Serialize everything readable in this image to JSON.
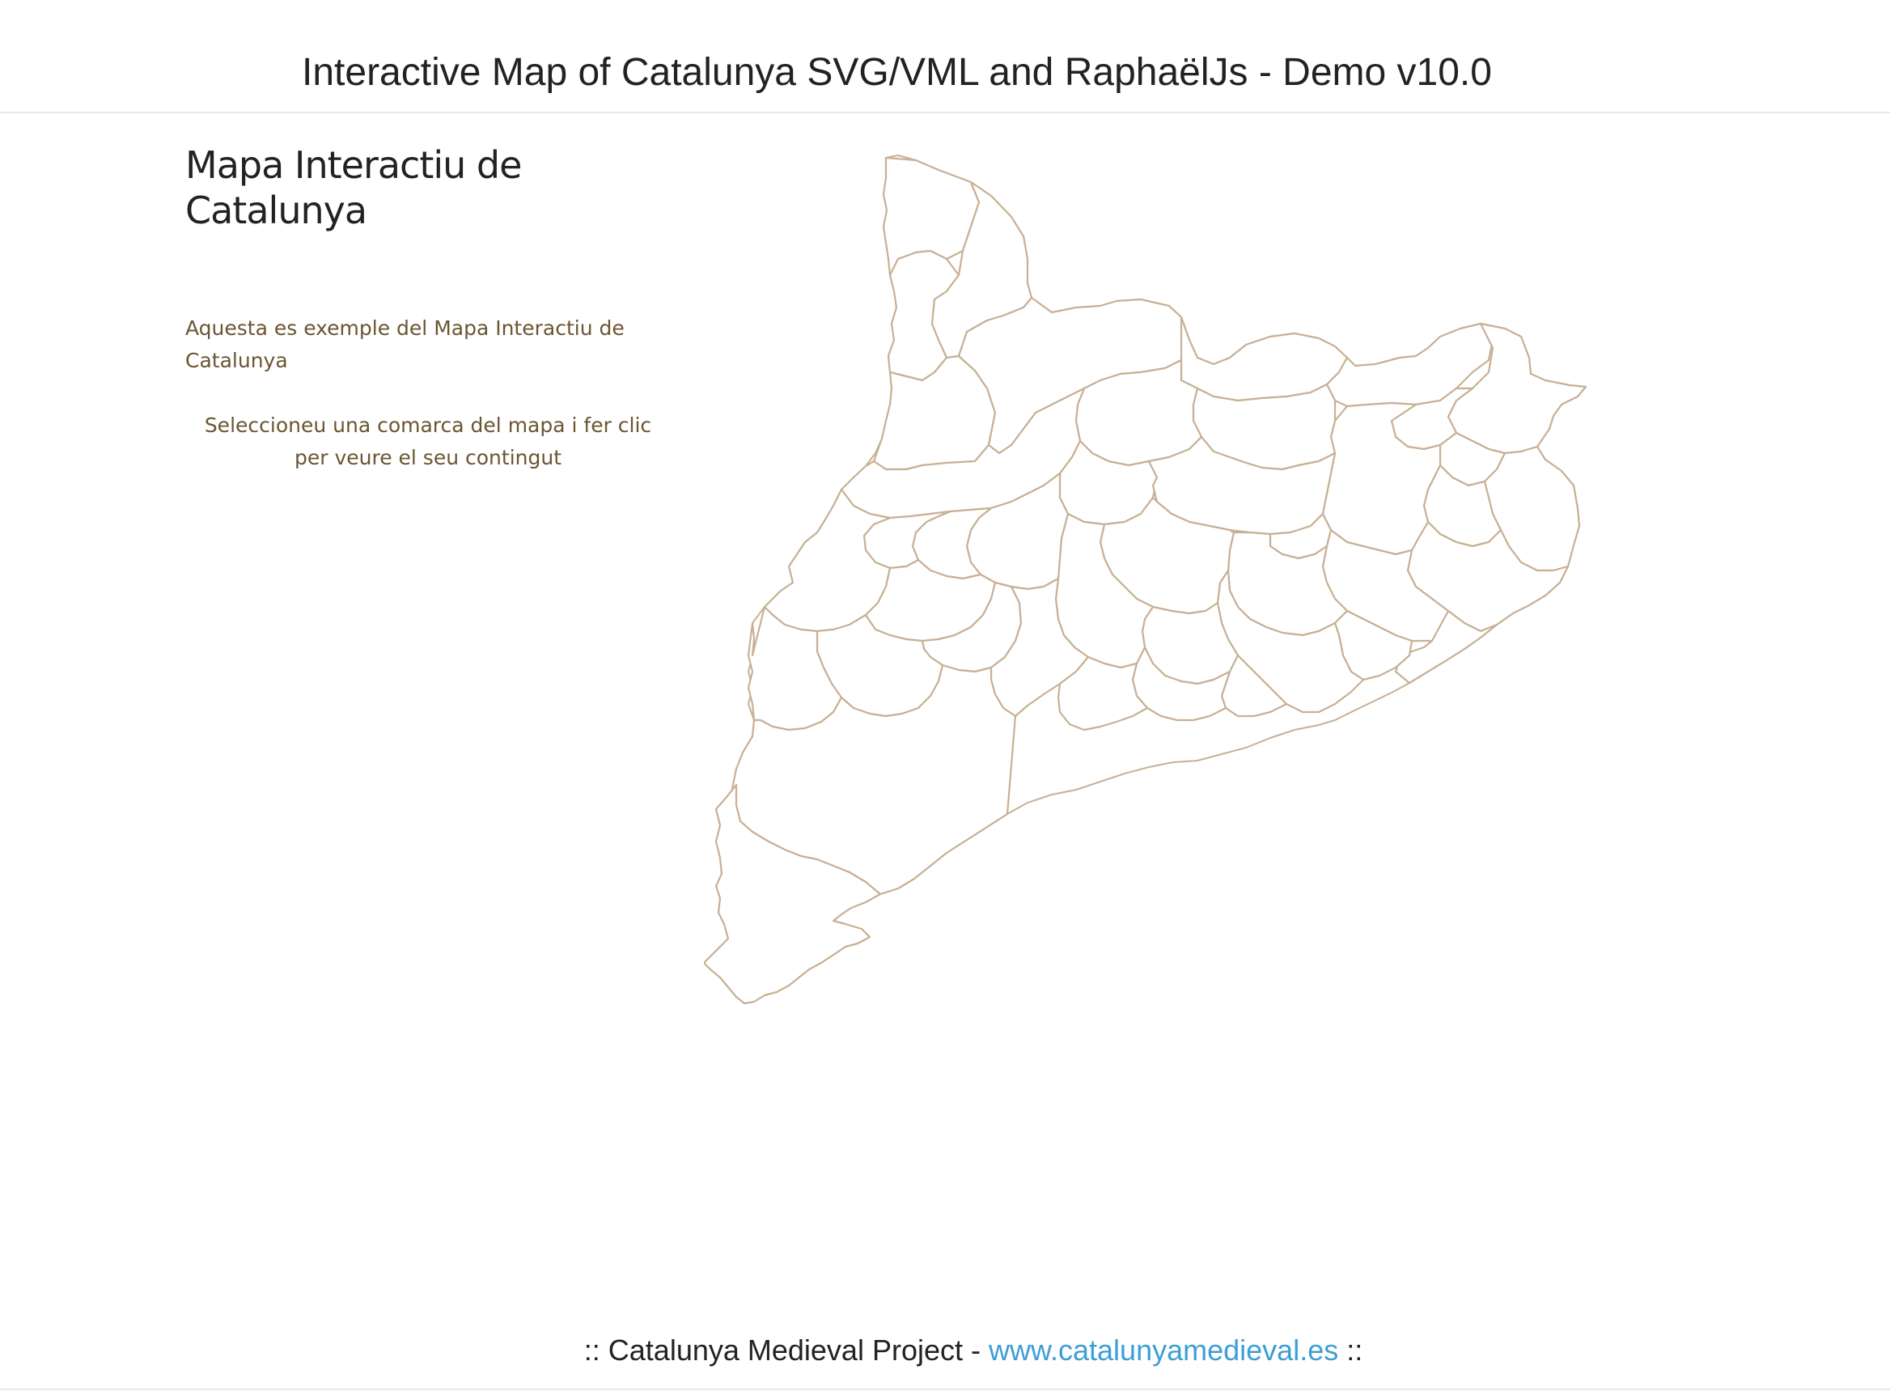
{
  "header": {
    "title": "Interactive Map of Catalunya SVG/VML and RaphaëlJs - Demo v10.0"
  },
  "sidebar": {
    "title": "Mapa Interactiu de Catalunya",
    "intro": "Aquesta es exemple del Mapa Interactiu de Catalunya",
    "instruction": "Seleccioneu una comarca del mapa i fer clic per veure el seu contingut"
  },
  "map": {
    "stroke_color": "#c8b095",
    "fill_color": "#ffffff"
  },
  "footer": {
    "prefix": ":: Catalunya Medieval Project - ",
    "link_text": "www.catalunyamedieval.es",
    "suffix": " ::",
    "link_color": "#3d9ed6"
  }
}
